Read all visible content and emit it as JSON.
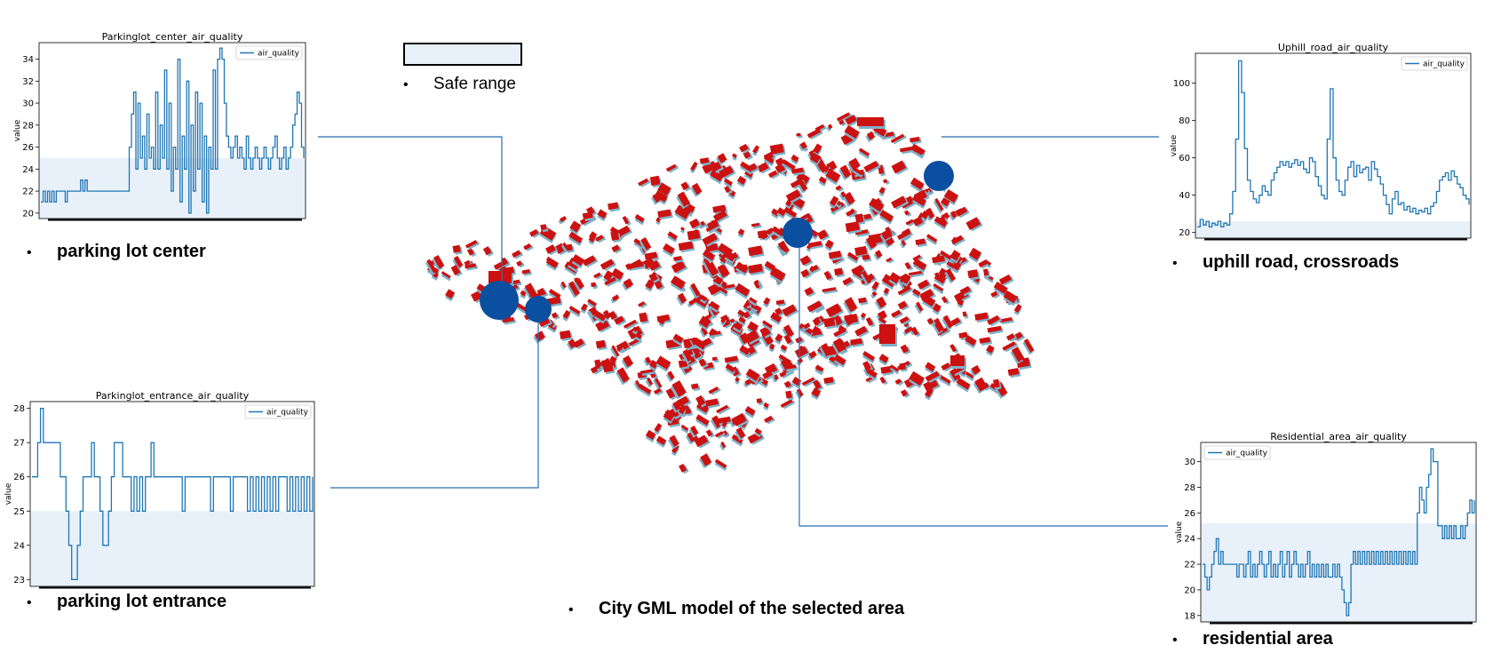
{
  "safe_range_label": "Safe range",
  "captions": {
    "parking_center": "parking lot center",
    "parking_entrance": "parking lot entrance",
    "uphill": "uphill road, crossroads",
    "residential": "residential area",
    "map": "City GML model of the selected area"
  },
  "colors": {
    "line": "#1f77b4",
    "safe_band": "#e8f0fa",
    "marker": "#0a4fa0",
    "building": "#cc1111",
    "building_shadow": "#7fb2c8",
    "connector": "#2a6db5"
  },
  "chart_data": [
    {
      "id": "parking_center",
      "type": "line",
      "title": "Parkinglot_center_air_quality",
      "ylabel": "value",
      "legend": "air_quality",
      "legend_position": "top-right",
      "ylim": [
        19.5,
        35.5
      ],
      "yticks": [
        20,
        22,
        24,
        26,
        28,
        30,
        32,
        34
      ],
      "safe_max": 25,
      "values": [
        21,
        22,
        21,
        22,
        21,
        22,
        21,
        22,
        22,
        22,
        22,
        21,
        22,
        22,
        22,
        22,
        22,
        22,
        23,
        22,
        23,
        22,
        22,
        22,
        22,
        22,
        22,
        22,
        22,
        22,
        22,
        22,
        22,
        22,
        22,
        22,
        22,
        22,
        22,
        22,
        26,
        29,
        31,
        24,
        30,
        25,
        27,
        24,
        29,
        25,
        26,
        24,
        31,
        24,
        28,
        25,
        33,
        24,
        30,
        22,
        26,
        24,
        34,
        21,
        27,
        24,
        32,
        20,
        28,
        22,
        31,
        24,
        30,
        21,
        27,
        20,
        26,
        24,
        33,
        24,
        34,
        35,
        34,
        30,
        27,
        26,
        25,
        26,
        27,
        25,
        26,
        25,
        24,
        27,
        25,
        24,
        25,
        26,
        25,
        24,
        25,
        26,
        25,
        24,
        25,
        26,
        27,
        25,
        24,
        25,
        26,
        24,
        25,
        26,
        28,
        29,
        31,
        30,
        26,
        25
      ]
    },
    {
      "id": "parking_entrance",
      "type": "line",
      "title": "Parkinglot_entrance_air_quality",
      "ylabel": "value",
      "legend": "air_quality",
      "legend_position": "top-right",
      "ylim": [
        22.8,
        28.2
      ],
      "yticks": [
        23,
        24,
        25,
        26,
        27,
        28
      ],
      "safe_max": 25,
      "values": [
        26,
        26,
        27,
        28,
        27,
        27,
        27,
        27,
        27,
        27,
        26,
        26,
        25,
        24,
        23,
        23,
        24,
        25,
        26,
        26,
        26,
        27,
        26,
        26,
        25,
        24,
        24,
        25,
        26,
        27,
        27,
        27,
        26,
        26,
        26,
        25,
        26,
        25,
        26,
        25,
        26,
        26,
        27,
        26,
        26,
        26,
        26,
        26,
        26,
        26,
        26,
        26,
        26,
        25,
        26,
        26,
        26,
        26,
        26,
        26,
        26,
        26,
        26,
        25,
        26,
        26,
        26,
        26,
        26,
        26,
        25,
        26,
        26,
        26,
        26,
        26,
        25,
        26,
        25,
        26,
        25,
        26,
        25,
        26,
        25,
        26,
        25,
        26,
        26,
        26,
        25,
        26,
        25,
        26,
        25,
        26,
        25,
        26,
        25,
        26
      ]
    },
    {
      "id": "uphill",
      "type": "line",
      "title": "Uphill_road_air_quality",
      "ylabel": "value",
      "legend": "air_quality",
      "legend_position": "top-right",
      "ylim": [
        17,
        116
      ],
      "yticks": [
        20,
        40,
        60,
        80,
        100
      ],
      "safe_max": 26,
      "values": [
        23,
        27,
        24,
        26,
        23,
        25,
        24,
        26,
        23,
        25,
        24,
        30,
        42,
        70,
        112,
        95,
        65,
        48,
        42,
        38,
        36,
        40,
        45,
        42,
        40,
        48,
        52,
        55,
        58,
        56,
        58,
        55,
        57,
        59,
        56,
        58,
        54,
        52,
        60,
        58,
        50,
        45,
        40,
        38,
        70,
        97,
        60,
        48,
        42,
        40,
        48,
        55,
        58,
        50,
        56,
        52,
        54,
        55,
        48,
        58,
        54,
        50,
        46,
        40,
        35,
        30,
        38,
        42,
        35,
        36,
        32,
        34,
        31,
        33,
        30,
        32,
        31,
        33,
        30,
        34,
        36,
        42,
        48,
        50,
        52,
        48,
        53,
        50,
        46,
        44,
        40,
        38,
        35
      ],
      "series_count": 1
    },
    {
      "id": "residential",
      "type": "line",
      "title": "Residential_area_air_quality",
      "ylabel": "value",
      "legend": "air_quality",
      "legend_position": "top-left",
      "ylim": [
        17.5,
        31.5
      ],
      "yticks": [
        18,
        20,
        22,
        24,
        26,
        28,
        30
      ],
      "safe_max": 25.2,
      "values": [
        22,
        21,
        20,
        21,
        22,
        23,
        24,
        22,
        23,
        22,
        22,
        22,
        22,
        22,
        22,
        21,
        22,
        22,
        21,
        22,
        23,
        21,
        22,
        21,
        22,
        23,
        22,
        21,
        22,
        23,
        21,
        22,
        21,
        22,
        23,
        21,
        22,
        23,
        21,
        22,
        23,
        22,
        21,
        22,
        21,
        22,
        23,
        21,
        22,
        21,
        22,
        21,
        22,
        21,
        22,
        21,
        21,
        22,
        21,
        22,
        21,
        20,
        19,
        18,
        19,
        22,
        23,
        22,
        23,
        22,
        23,
        22,
        23,
        22,
        23,
        22,
        23,
        22,
        23,
        22,
        23,
        22,
        23,
        22,
        23,
        22,
        23,
        22,
        23,
        22,
        23,
        22,
        23,
        22,
        26,
        28,
        27,
        26,
        28,
        29,
        31,
        30,
        30,
        25,
        25,
        24,
        25,
        24,
        25,
        24,
        25,
        24,
        24,
        25,
        24,
        25,
        26,
        27,
        26,
        27
      ]
    }
  ]
}
